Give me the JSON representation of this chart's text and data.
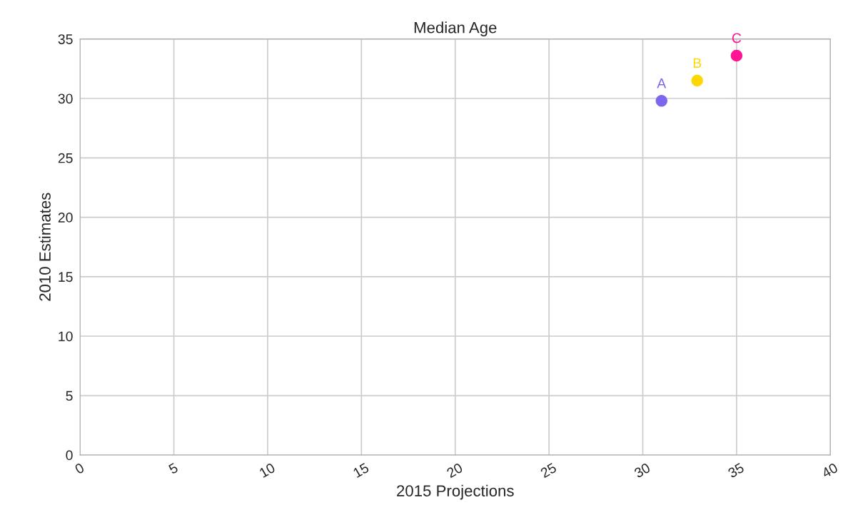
{
  "chart_data": {
    "type": "scatter",
    "title": "Median Age",
    "xlabel": "2015 Projections",
    "ylabel": "2010 Estimates",
    "series": [
      {
        "name": "A",
        "color": "#7b68ee",
        "x": [
          31.0
        ],
        "values": [
          29.8
        ]
      },
      {
        "name": "B",
        "color": "#ffd700",
        "x": [
          32.9
        ],
        "values": [
          31.5
        ]
      },
      {
        "name": "C",
        "color": "#ff1493",
        "x": [
          35.0
        ],
        "values": [
          33.6
        ]
      }
    ],
    "xlim": [
      0,
      40
    ],
    "xticks": [
      0,
      5,
      10,
      15,
      20,
      25,
      30,
      35,
      40
    ],
    "ylim": [
      0,
      35
    ],
    "yticks": [
      0,
      5,
      10,
      15,
      20,
      25,
      30,
      35
    ],
    "grid": true,
    "marker": "circle"
  }
}
